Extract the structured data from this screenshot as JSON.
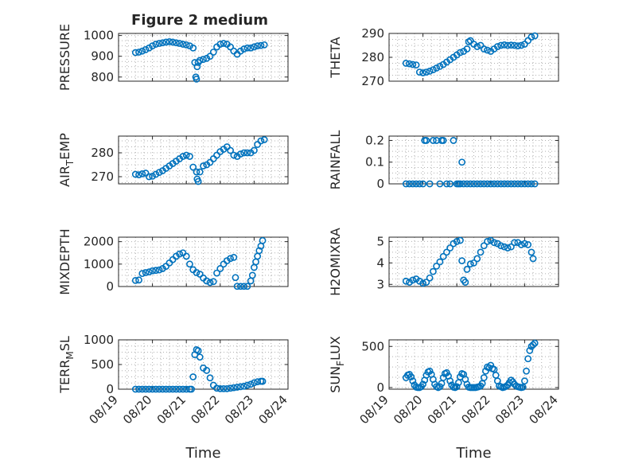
{
  "figure_title": "Figure 2 medium",
  "x_axis": {
    "label": "Time",
    "tick_labels": [
      "08/19",
      "08/20",
      "08/21",
      "08/22",
      "08/23",
      "08/24"
    ],
    "range_days": [
      0,
      5
    ]
  },
  "chart_data": [
    {
      "type": "scatter",
      "ylabel": "PRESSURE",
      "ylim": [
        780,
        1010
      ],
      "yticks": [
        800,
        900,
        1000
      ],
      "grid": true,
      "x": [
        0.5,
        0.6,
        0.7,
        0.8,
        0.9,
        1.0,
        1.1,
        1.2,
        1.3,
        1.4,
        1.5,
        1.6,
        1.7,
        1.8,
        1.9,
        2.0,
        2.1,
        2.2,
        2.25,
        2.28,
        2.3,
        2.32,
        2.35,
        2.4,
        2.5,
        2.6,
        2.7,
        2.8,
        2.9,
        3.0,
        3.1,
        3.2,
        3.3,
        3.4,
        3.5,
        3.6,
        3.7,
        3.8,
        3.9,
        4.0,
        4.1,
        4.2,
        4.3
      ],
      "y": [
        918,
        920,
        925,
        932,
        940,
        950,
        958,
        962,
        965,
        968,
        970,
        968,
        965,
        962,
        958,
        955,
        950,
        940,
        870,
        800,
        790,
        850,
        870,
        880,
        885,
        890,
        900,
        920,
        945,
        958,
        962,
        958,
        945,
        925,
        910,
        925,
        935,
        940,
        940,
        945,
        950,
        952,
        955
      ]
    },
    {
      "type": "scatter",
      "ylabel": "THETA",
      "ylim": [
        270,
        290
      ],
      "yticks": [
        270,
        280,
        290
      ],
      "grid": true,
      "x": [
        0.5,
        0.6,
        0.7,
        0.8,
        0.9,
        1.0,
        1.1,
        1.2,
        1.3,
        1.4,
        1.5,
        1.6,
        1.7,
        1.8,
        1.9,
        2.0,
        2.1,
        2.2,
        2.3,
        2.35,
        2.4,
        2.5,
        2.6,
        2.7,
        2.8,
        2.9,
        3.0,
        3.1,
        3.2,
        3.3,
        3.4,
        3.5,
        3.6,
        3.7,
        3.8,
        3.9,
        4.0,
        4.1,
        4.2,
        4.3
      ],
      "y": [
        277.5,
        277.3,
        277.0,
        276.8,
        273.8,
        273.5,
        273.8,
        274.2,
        274.8,
        275.5,
        276.2,
        277.0,
        278.0,
        279.0,
        280.0,
        281.0,
        282.0,
        282.5,
        283.5,
        286.5,
        287.0,
        285.5,
        284.5,
        285.0,
        283.5,
        283.0,
        282.5,
        283.5,
        284.5,
        285.0,
        285.2,
        285.0,
        285.1,
        285.0,
        284.8,
        285.0,
        285.5,
        287.0,
        288.5,
        289.0
      ]
    },
    {
      "type": "scatter",
      "ylabel": "AIR_TEMP",
      "ylim": [
        267,
        287
      ],
      "yticks": [
        270,
        280
      ],
      "grid": true,
      "x": [
        0.5,
        0.6,
        0.7,
        0.8,
        0.9,
        1.0,
        1.1,
        1.2,
        1.3,
        1.4,
        1.5,
        1.6,
        1.7,
        1.8,
        1.9,
        2.0,
        2.1,
        2.2,
        2.3,
        2.32,
        2.35,
        2.4,
        2.5,
        2.6,
        2.7,
        2.8,
        2.9,
        3.0,
        3.1,
        3.2,
        3.3,
        3.4,
        3.5,
        3.6,
        3.7,
        3.8,
        3.9,
        4.0,
        4.1,
        4.2,
        4.3
      ],
      "y": [
        271.0,
        270.8,
        271.2,
        271.5,
        270.0,
        270.2,
        271.0,
        271.8,
        272.5,
        273.5,
        274.5,
        275.5,
        276.5,
        277.5,
        278.5,
        279.0,
        278.5,
        274.0,
        272.0,
        269.0,
        268.0,
        272.0,
        274.5,
        275.0,
        276.0,
        277.5,
        279.0,
        280.5,
        281.5,
        282.5,
        281.0,
        279.0,
        278.5,
        279.5,
        280.0,
        280.0,
        280.0,
        281.0,
        283.5,
        285.0,
        285.5
      ]
    },
    {
      "type": "scatter",
      "ylabel": "RAINFALL",
      "ylim": [
        0,
        0.22
      ],
      "yticks": [
        0,
        0.1,
        0.2
      ],
      "grid": true,
      "x": [
        0.5,
        0.6,
        0.7,
        0.8,
        0.9,
        1.0,
        1.05,
        1.1,
        1.2,
        1.3,
        1.4,
        1.5,
        1.55,
        1.6,
        1.7,
        1.8,
        1.9,
        2.0,
        2.05,
        2.1,
        2.15,
        2.2,
        2.3,
        2.4,
        2.5,
        2.6,
        2.7,
        2.8,
        2.9,
        3.0,
        3.1,
        3.2,
        3.3,
        3.4,
        3.5,
        3.6,
        3.7,
        3.8,
        3.9,
        4.0,
        4.1,
        4.2,
        4.3
      ],
      "y": [
        0,
        0,
        0,
        0,
        0,
        0,
        0.2,
        0.2,
        0,
        0.2,
        0.2,
        0,
        0.2,
        0.2,
        0,
        0,
        0.2,
        0,
        0,
        0,
        0.1,
        0,
        0,
        0,
        0,
        0,
        0,
        0,
        0,
        0,
        0,
        0,
        0,
        0,
        0,
        0,
        0,
        0,
        0,
        0,
        0,
        0,
        0
      ]
    },
    {
      "type": "scatter",
      "ylabel": "MIXDEPTH",
      "ylim": [
        0,
        2200
      ],
      "yticks": [
        0,
        1000,
        2000
      ],
      "grid": true,
      "x": [
        0.5,
        0.6,
        0.7,
        0.8,
        0.9,
        1.0,
        1.1,
        1.2,
        1.3,
        1.4,
        1.5,
        1.6,
        1.7,
        1.8,
        1.9,
        2.0,
        2.1,
        2.2,
        2.3,
        2.4,
        2.5,
        2.6,
        2.7,
        2.8,
        2.9,
        3.0,
        3.1,
        3.2,
        3.3,
        3.4,
        3.45,
        3.5,
        3.6,
        3.7,
        3.8,
        3.9,
        3.95,
        4.0,
        4.05,
        4.1,
        4.15,
        4.2,
        4.25
      ],
      "y": [
        270,
        290,
        580,
        620,
        650,
        700,
        720,
        740,
        800,
        900,
        1050,
        1200,
        1350,
        1450,
        1500,
        1350,
        1000,
        750,
        620,
        550,
        380,
        250,
        180,
        220,
        600,
        800,
        1000,
        1150,
        1250,
        1300,
        400,
        10,
        10,
        10,
        10,
        250,
        500,
        850,
        1100,
        1350,
        1600,
        1800,
        2050
      ]
    },
    {
      "type": "scatter",
      "ylabel": "H2OMIXRA",
      "ylim": [
        2.9,
        5.2
      ],
      "yticks": [
        3,
        4,
        5
      ],
      "grid": true,
      "x": [
        0.5,
        0.6,
        0.7,
        0.8,
        0.9,
        1.0,
        1.1,
        1.2,
        1.3,
        1.4,
        1.5,
        1.6,
        1.7,
        1.8,
        1.9,
        2.0,
        2.1,
        2.15,
        2.2,
        2.25,
        2.3,
        2.4,
        2.5,
        2.6,
        2.7,
        2.8,
        2.9,
        3.0,
        3.1,
        3.2,
        3.3,
        3.4,
        3.5,
        3.6,
        3.7,
        3.8,
        3.9,
        4.0,
        4.1,
        4.2,
        4.25
      ],
      "y": [
        3.15,
        3.1,
        3.2,
        3.25,
        3.15,
        3.05,
        3.1,
        3.3,
        3.6,
        3.85,
        4.05,
        4.3,
        4.5,
        4.7,
        4.9,
        5.0,
        5.05,
        4.1,
        3.2,
        3.1,
        3.7,
        3.95,
        4.0,
        4.2,
        4.5,
        4.8,
        5.0,
        5.05,
        4.95,
        4.9,
        4.8,
        4.75,
        4.7,
        4.75,
        4.95,
        4.95,
        4.85,
        4.9,
        4.85,
        4.5,
        4.2
      ]
    },
    {
      "type": "scatter",
      "ylabel": "TERR_MSL",
      "ylim": [
        0,
        1000
      ],
      "yticks": [
        0,
        500,
        1000
      ],
      "grid": true,
      "x": [
        0.5,
        0.6,
        0.7,
        0.8,
        0.9,
        1.0,
        1.1,
        1.2,
        1.3,
        1.4,
        1.5,
        1.6,
        1.7,
        1.8,
        1.9,
        2.0,
        2.1,
        2.15,
        2.2,
        2.25,
        2.3,
        2.35,
        2.4,
        2.5,
        2.6,
        2.7,
        2.8,
        2.9,
        3.0,
        3.1,
        3.2,
        3.3,
        3.4,
        3.5,
        3.6,
        3.7,
        3.8,
        3.9,
        4.0,
        4.1,
        4.2,
        4.25
      ],
      "y": [
        0,
        0,
        0,
        0,
        0,
        0,
        0,
        0,
        0,
        0,
        0,
        0,
        0,
        0,
        0,
        0,
        0,
        0,
        250,
        700,
        800,
        780,
        650,
        430,
        380,
        230,
        80,
        20,
        10,
        10,
        10,
        20,
        30,
        40,
        50,
        60,
        80,
        100,
        130,
        150,
        160,
        160
      ]
    },
    {
      "type": "scatter",
      "ylabel": "SUN_FLUX",
      "ylim": [
        -20,
        580
      ],
      "yticks": [
        0,
        500
      ],
      "grid": true,
      "x": [
        0.5,
        0.55,
        0.6,
        0.65,
        0.7,
        0.75,
        0.8,
        0.85,
        0.9,
        0.95,
        1.0,
        1.05,
        1.1,
        1.15,
        1.2,
        1.25,
        1.3,
        1.35,
        1.4,
        1.45,
        1.5,
        1.55,
        1.6,
        1.65,
        1.7,
        1.75,
        1.8,
        1.85,
        1.9,
        1.95,
        2.0,
        2.05,
        2.1,
        2.15,
        2.2,
        2.25,
        2.3,
        2.35,
        2.4,
        2.45,
        2.5,
        2.55,
        2.6,
        2.65,
        2.7,
        2.75,
        2.8,
        2.85,
        2.9,
        2.95,
        3.0,
        3.05,
        3.1,
        3.15,
        3.2,
        3.25,
        3.3,
        3.35,
        3.4,
        3.45,
        3.5,
        3.55,
        3.6,
        3.65,
        3.7,
        3.75,
        3.8,
        3.85,
        3.9,
        3.95,
        4.0,
        4.05,
        4.1,
        4.15,
        4.2,
        4.25,
        4.3
      ],
      "y": [
        120,
        150,
        160,
        130,
        80,
        30,
        5,
        0,
        0,
        10,
        40,
        90,
        150,
        190,
        200,
        160,
        100,
        40,
        10,
        0,
        10,
        50,
        120,
        170,
        180,
        140,
        80,
        30,
        5,
        0,
        10,
        60,
        130,
        170,
        160,
        100,
        40,
        5,
        0,
        0,
        0,
        0,
        5,
        10,
        20,
        50,
        120,
        200,
        250,
        240,
        270,
        230,
        220,
        150,
        80,
        20,
        10,
        0,
        5,
        15,
        30,
        60,
        90,
        70,
        40,
        20,
        10,
        5,
        0,
        5,
        80,
        200,
        350,
        450,
        500,
        520,
        540
      ]
    }
  ]
}
